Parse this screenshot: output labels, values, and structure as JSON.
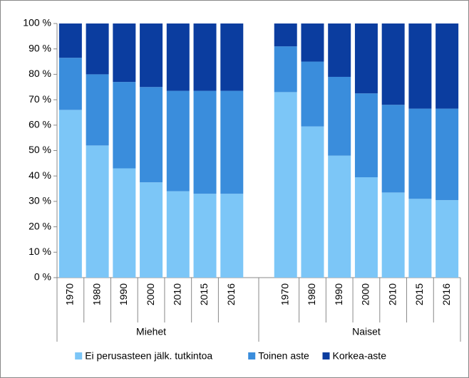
{
  "chart_data": {
    "type": "stacked_bar",
    "categories": [
      "1970",
      "1980",
      "1990",
      "2000",
      "2010",
      "2015",
      "2016",
      null,
      "1970",
      "1980",
      "1990",
      "2000",
      "2010",
      "2015",
      "2016"
    ],
    "groups": [
      "Miehet",
      "Naiset"
    ],
    "series": [
      {
        "name": "Ei perusasteen jälk. tutkintoa",
        "color": "#7cc6f7",
        "values": [
          66,
          52,
          43,
          37.5,
          34,
          33,
          33,
          null,
          73,
          59.5,
          48,
          39.5,
          33.5,
          31,
          30.5
        ]
      },
      {
        "name": "Toinen aste",
        "color": "#3a8ddc",
        "values": [
          20.5,
          28,
          34,
          37.5,
          39.5,
          40.5,
          40.5,
          null,
          18,
          25.5,
          31,
          33,
          34.5,
          35.5,
          36
        ]
      },
      {
        "name": "Korkea-aste",
        "color": "#0b3d9f",
        "values": [
          13.5,
          20,
          23,
          25,
          26.5,
          26.5,
          26.5,
          null,
          9,
          15,
          21,
          27.5,
          32,
          33.5,
          33.5
        ]
      }
    ],
    "ylim": [
      0,
      100
    ],
    "yticks": [
      {
        "value": 0,
        "label": "0 %"
      },
      {
        "value": 10,
        "label": "10 %"
      },
      {
        "value": 20,
        "label": "20 %"
      },
      {
        "value": 30,
        "label": "30 %"
      },
      {
        "value": 40,
        "label": "40 %"
      },
      {
        "value": 50,
        "label": "50 %"
      },
      {
        "value": 60,
        "label": "60 %"
      },
      {
        "value": 70,
        "label": "70 %"
      },
      {
        "value": 80,
        "label": "80 %"
      },
      {
        "value": 90,
        "label": "90 %"
      },
      {
        "value": 100,
        "label": "100 %"
      }
    ],
    "legend": "bottom"
  }
}
